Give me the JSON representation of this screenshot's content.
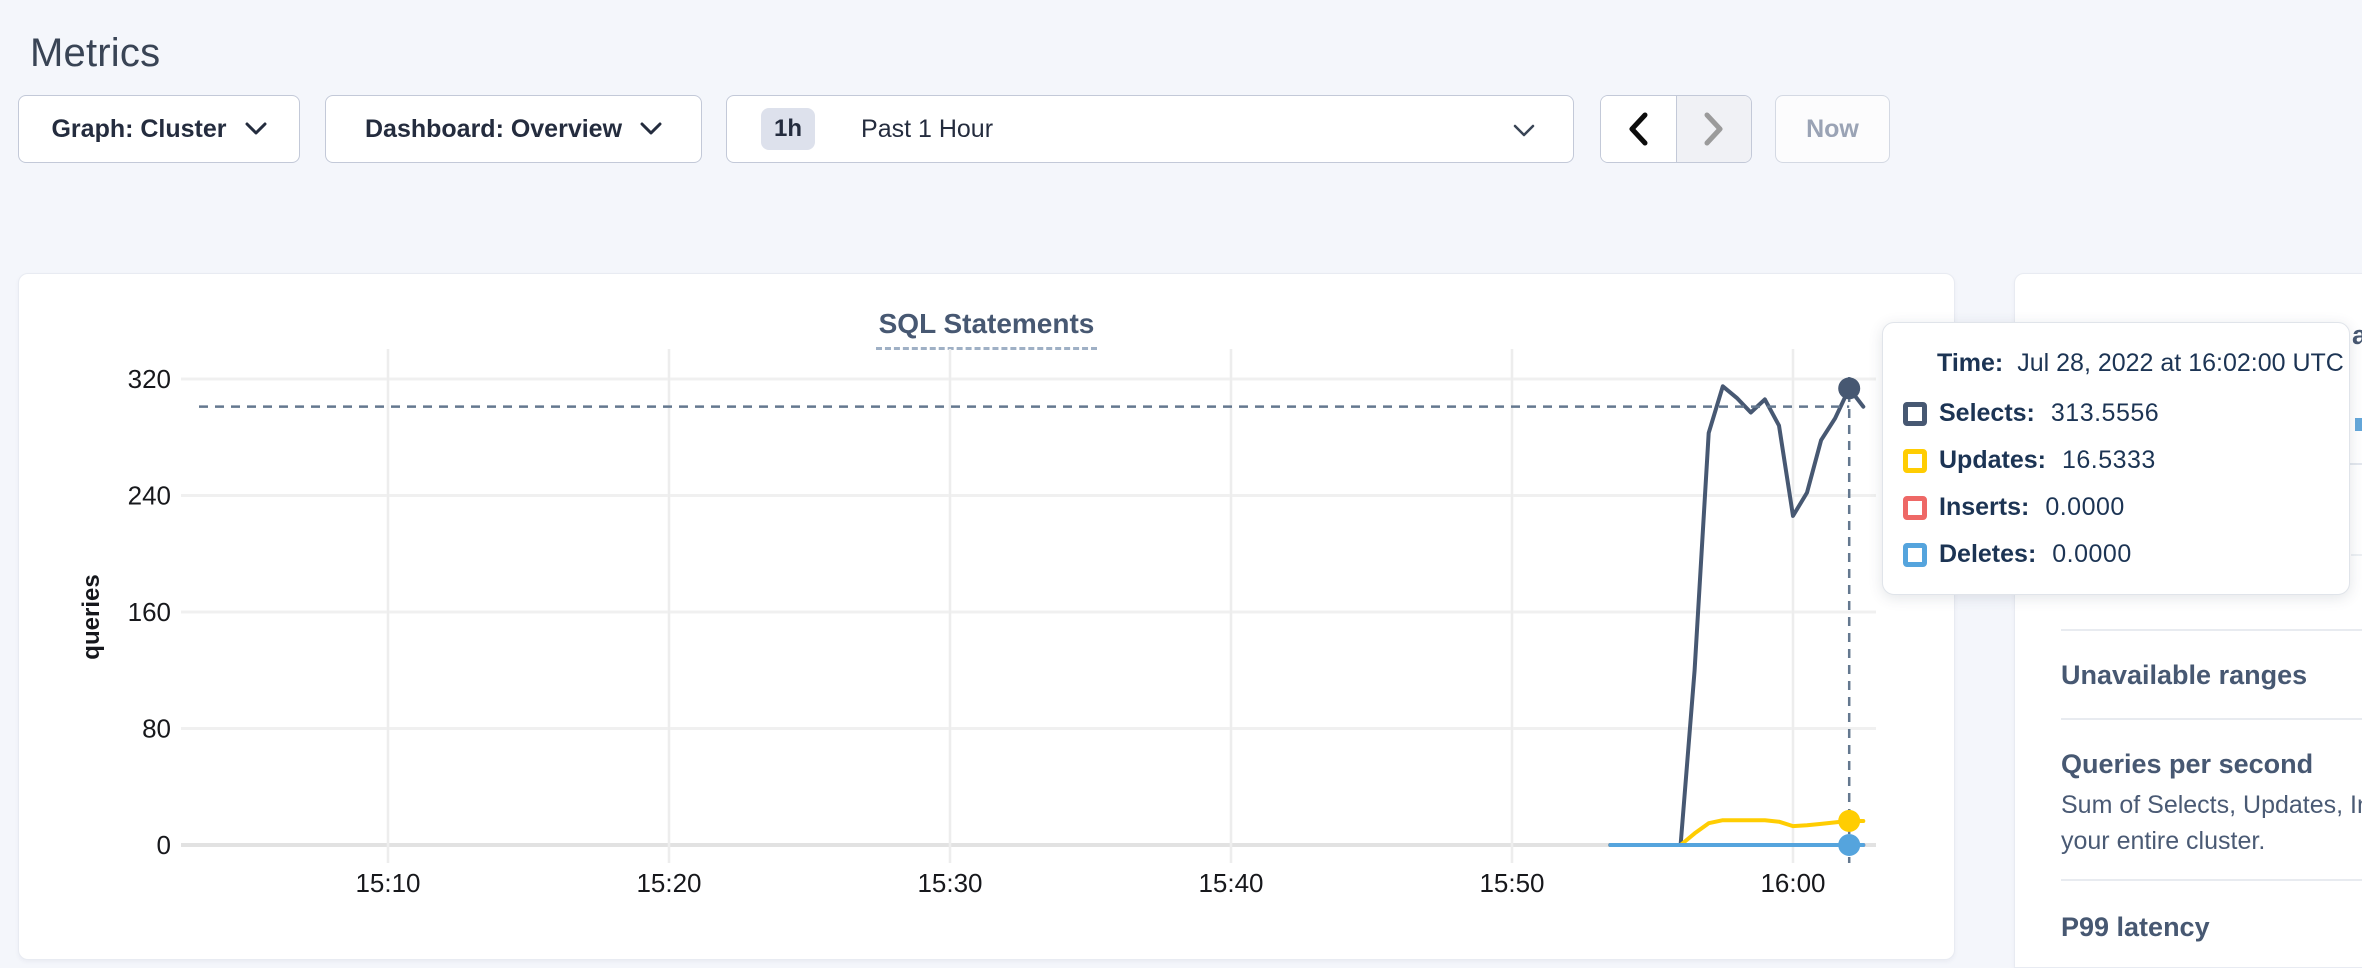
{
  "page": {
    "title": "Metrics"
  },
  "toolbar": {
    "graph_label": "Graph: Cluster",
    "dashboard_label": "Dashboard: Overview",
    "range_badge": "1h",
    "range_label": "Past 1 Hour",
    "now_label": "Now",
    "icons": [
      "chevron-down-icon",
      "chevron-left-icon",
      "chevron-right-icon"
    ]
  },
  "chart_data": {
    "type": "line",
    "title": "SQL Statements",
    "xlabel": "",
    "ylabel": "queries",
    "ylim": [
      0,
      320
    ],
    "grid": true,
    "y_ticks": [
      0,
      80,
      160,
      240,
      320
    ],
    "x_ticks": [
      "15:10",
      "15:20",
      "15:30",
      "15:40",
      "15:50",
      "16:00"
    ],
    "x_domain": [
      "15:02:30",
      "16:02:57"
    ],
    "x": [
      "15:53:30",
      "15:54:00",
      "15:54:30",
      "15:55:00",
      "15:55:30",
      "15:56:00",
      "15:56:30",
      "15:57:00",
      "15:57:30",
      "15:58:00",
      "15:58:30",
      "15:59:00",
      "15:59:30",
      "16:00:00",
      "16:00:30",
      "16:01:00",
      "16:01:30",
      "16:02:00",
      "16:02:30"
    ],
    "series": [
      {
        "name": "Selects",
        "color": "#475872",
        "values": [
          0,
          0,
          0,
          0,
          0,
          0,
          120,
          283,
          315,
          307,
          297,
          306,
          288,
          226,
          242,
          278,
          293,
          313.5556,
          301
        ]
      },
      {
        "name": "Updates",
        "color": "#ffcd02",
        "values": [
          0,
          0,
          0,
          0,
          0,
          0,
          8,
          15,
          17,
          17,
          17,
          17,
          16,
          13,
          13.5,
          14.5,
          15.5,
          16.5333,
          16.5
        ]
      },
      {
        "name": "Inserts",
        "color": "#ee6866",
        "values": [
          0,
          0,
          0,
          0,
          0,
          0,
          0,
          0,
          0,
          0,
          0,
          0,
          0,
          0,
          0,
          0,
          0,
          0,
          0
        ]
      },
      {
        "name": "Deletes",
        "color": "#55a4dd",
        "values": [
          0,
          0,
          0,
          0,
          0,
          0,
          0,
          0,
          0,
          0,
          0,
          0,
          0,
          0,
          0,
          0,
          0,
          0,
          0
        ]
      }
    ],
    "hover": {
      "time": "16:02:00",
      "crosshair_value": 301,
      "dot_series": [
        "Selects",
        "Updates",
        "Deletes"
      ]
    },
    "legend_position": "tooltip"
  },
  "tooltip": {
    "time_label": "Time:",
    "time_value": "Jul 28, 2022 at 16:02:00 UTC",
    "rows": [
      {
        "label": "Selects:",
        "value": "313.5556",
        "color": "#475872"
      },
      {
        "label": "Updates:",
        "value": "16.5333",
        "color": "#ffcd02"
      },
      {
        "label": "Inserts:",
        "value": "0.0000",
        "color": "#ee6866"
      },
      {
        "label": "Deletes:",
        "value": "0.0000",
        "color": "#55a4dd"
      }
    ]
  },
  "sidebar": {
    "sections": [
      {
        "heading": "Unavailable ranges"
      },
      {
        "heading": "Queries per second",
        "desc_line1": "Sum of Selects, Updates, Inserts and",
        "desc_line2": "your entire cluster."
      },
      {
        "heading": "P99 latency"
      }
    ],
    "clipped_fragment": "a"
  },
  "colors": {
    "page_bg": "#f4f6fb",
    "heading": "#394455",
    "chart_title": "#475872",
    "crosshair": "#64788f",
    "selects": "#475872",
    "updates": "#ffcd02",
    "inserts": "#ee6866",
    "deletes": "#55a4dd"
  }
}
